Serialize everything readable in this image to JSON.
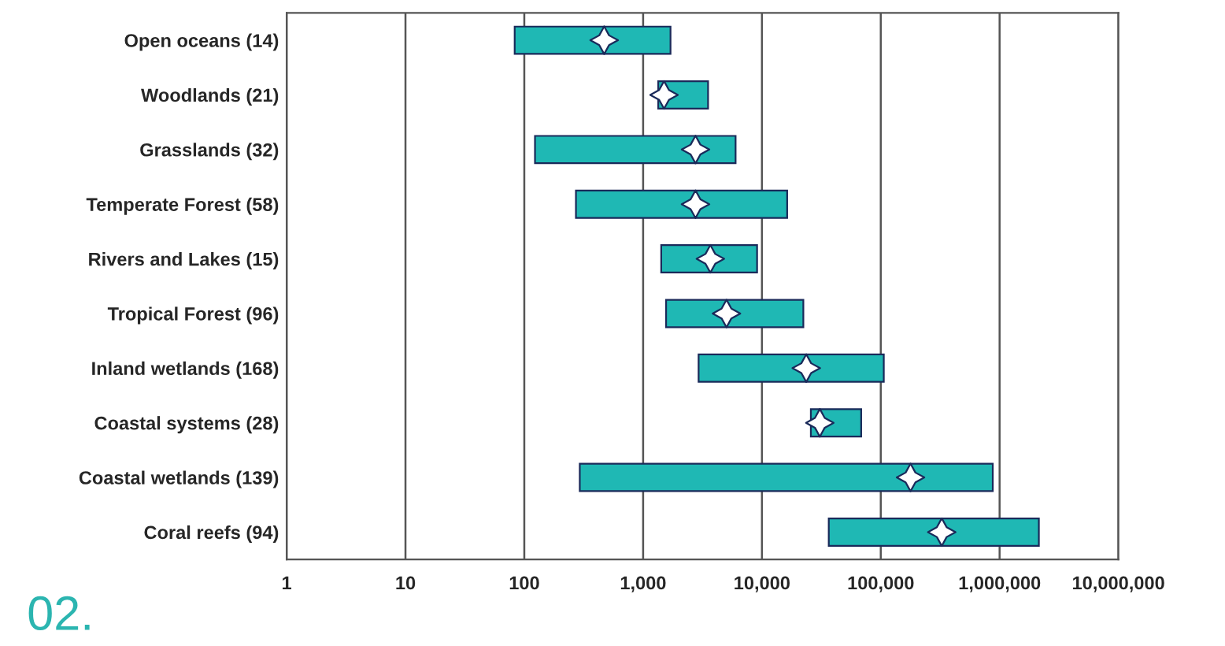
{
  "chart_data": {
    "type": "bar",
    "orientation": "horizontal",
    "log": "x",
    "categories": [
      "Open oceans (14)",
      "Woodlands (21)",
      "Grasslands (32)",
      "Temperate Forest (58)",
      "Rivers and Lakes (15)",
      "Tropical Forest (96)",
      "Inland wetlands (168)",
      "Coastal systems (28)",
      "Coastal wetlands (139)",
      "Coral reefs (94)"
    ],
    "series": [
      {
        "color": "#1fb8b4",
        "base": [
          83,
          1340,
          123,
          272,
          1420,
          1560,
          2930,
          25800,
          293,
          36500
        ],
        "values": [
          1617,
          2180,
          5877,
          16028,
          7680,
          20740,
          103070,
          42600,
          875707,
          2103500
        ]
      },
      {
        "type": "scatter",
        "color": "#ffffff",
        "marker": "star",
        "x": [
          "Open oceans (14)",
          "Woodlands (21)",
          "Grasslands (32)",
          "Temperate Forest (58)",
          "Rivers and Lakes (15)",
          "Tropical Forest (96)",
          "Inland wetlands (168)",
          "Coastal systems (28)",
          "Coastal wetlands (139)",
          "Coral reefs (94)"
        ],
        "values": [
          470,
          1500,
          2760,
          2760,
          3680,
          5030,
          23600,
          30700,
          178000,
          326000
        ]
      }
    ],
    "xlim": [
      1,
      10000000
    ],
    "xticks": [
      1,
      10,
      100,
      {
        "value": 1000,
        "label": "1,000"
      },
      {
        "value": 10000,
        "label": "10,000"
      },
      {
        "value": 100000,
        "label": "100,000"
      },
      {
        "value": 1000000,
        "label": "1,000,000"
      },
      {
        "value": 10000000,
        "label": "10,000,000"
      }
    ],
    "grid": "x",
    "legend": false,
    "annotations": [
      "02."
    ]
  }
}
